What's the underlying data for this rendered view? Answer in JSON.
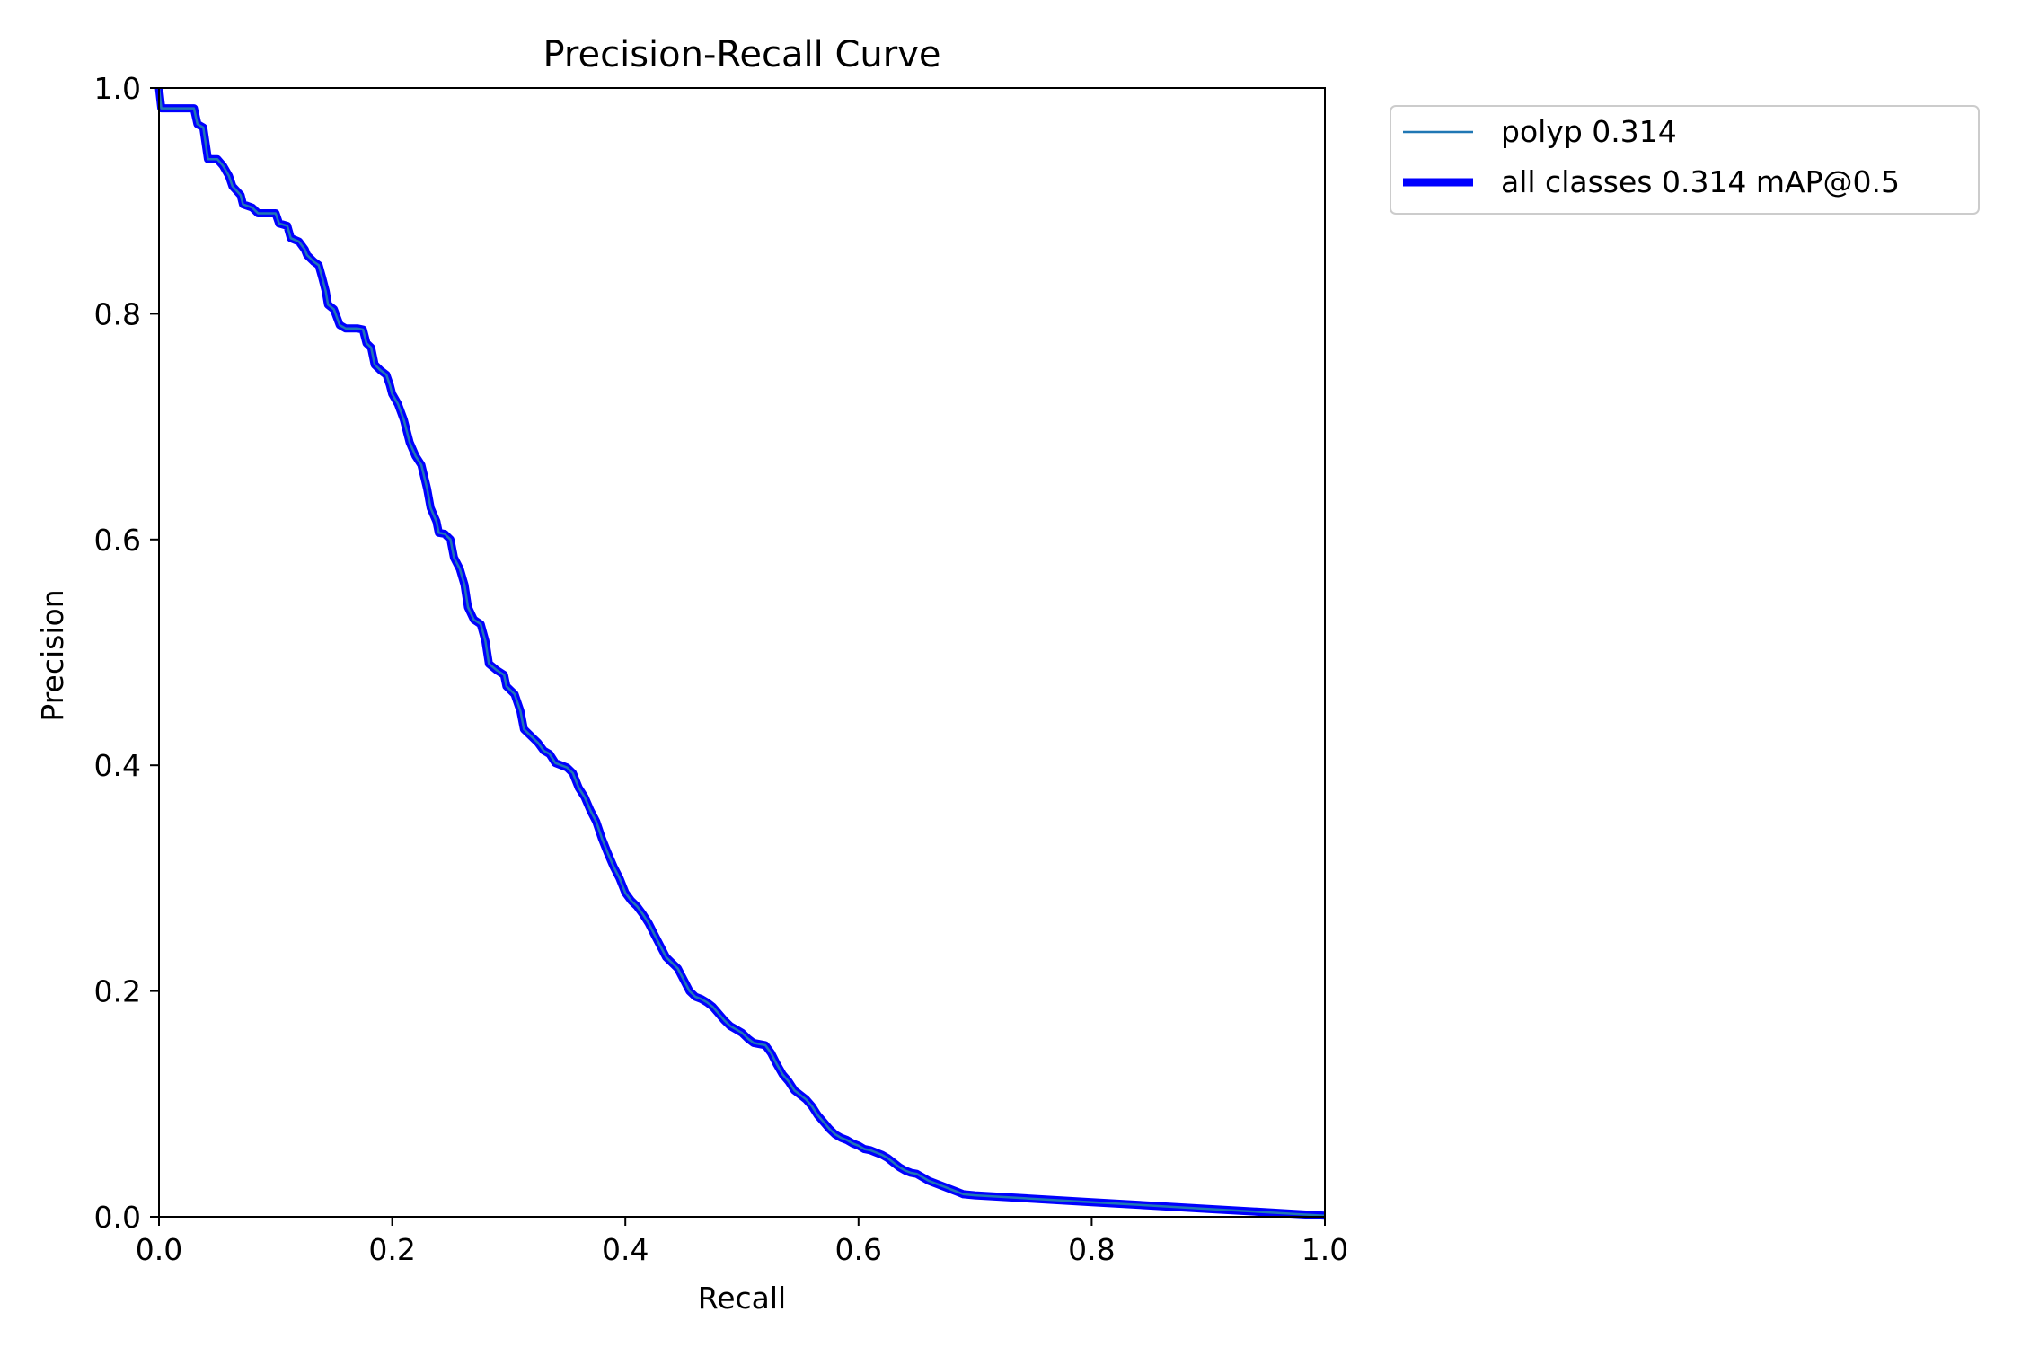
{
  "chart_data": {
    "type": "line",
    "title": "Precision-Recall Curve",
    "xlabel": "Recall",
    "ylabel": "Precision",
    "xlim": [
      0,
      1
    ],
    "ylim": [
      0,
      1
    ],
    "xticks": [
      "0.0",
      "0.2",
      "0.4",
      "0.6",
      "0.8",
      "1.0"
    ],
    "yticks": [
      "0.0",
      "0.2",
      "0.4",
      "0.6",
      "0.8",
      "1.0"
    ],
    "grid": false,
    "legend_position": "outside-top-right",
    "series": [
      {
        "name": "polyp 0.314",
        "color": "#1f77b4",
        "linewidth": "thin",
        "points": [
          [
            0.0,
            1.0
          ],
          [
            0.002,
            0.982
          ],
          [
            0.01,
            0.982
          ],
          [
            0.02,
            0.982
          ],
          [
            0.03,
            0.982
          ],
          [
            0.033,
            0.968
          ],
          [
            0.038,
            0.965
          ],
          [
            0.04,
            0.951
          ],
          [
            0.042,
            0.937
          ],
          [
            0.05,
            0.937
          ],
          [
            0.055,
            0.931
          ],
          [
            0.06,
            0.922
          ],
          [
            0.063,
            0.913
          ],
          [
            0.07,
            0.905
          ],
          [
            0.072,
            0.897
          ],
          [
            0.08,
            0.894
          ],
          [
            0.085,
            0.889
          ],
          [
            0.1,
            0.889
          ],
          [
            0.103,
            0.88
          ],
          [
            0.11,
            0.878
          ],
          [
            0.113,
            0.867
          ],
          [
            0.12,
            0.864
          ],
          [
            0.125,
            0.857
          ],
          [
            0.127,
            0.852
          ],
          [
            0.133,
            0.846
          ],
          [
            0.137,
            0.843
          ],
          [
            0.14,
            0.832
          ],
          [
            0.143,
            0.82
          ],
          [
            0.145,
            0.808
          ],
          [
            0.15,
            0.804
          ],
          [
            0.155,
            0.79
          ],
          [
            0.16,
            0.787
          ],
          [
            0.17,
            0.787
          ],
          [
            0.175,
            0.786
          ],
          [
            0.178,
            0.774
          ],
          [
            0.182,
            0.77
          ],
          [
            0.185,
            0.755
          ],
          [
            0.19,
            0.75
          ],
          [
            0.195,
            0.746
          ],
          [
            0.198,
            0.737
          ],
          [
            0.2,
            0.729
          ],
          [
            0.205,
            0.72
          ],
          [
            0.21,
            0.706
          ],
          [
            0.215,
            0.686
          ],
          [
            0.22,
            0.674
          ],
          [
            0.225,
            0.666
          ],
          [
            0.23,
            0.645
          ],
          [
            0.233,
            0.628
          ],
          [
            0.238,
            0.616
          ],
          [
            0.24,
            0.606
          ],
          [
            0.245,
            0.605
          ],
          [
            0.25,
            0.6
          ],
          [
            0.253,
            0.584
          ],
          [
            0.258,
            0.574
          ],
          [
            0.262,
            0.56
          ],
          [
            0.265,
            0.54
          ],
          [
            0.27,
            0.529
          ],
          [
            0.276,
            0.525
          ],
          [
            0.28,
            0.51
          ],
          [
            0.283,
            0.49
          ],
          [
            0.29,
            0.484
          ],
          [
            0.296,
            0.48
          ],
          [
            0.298,
            0.47
          ],
          [
            0.305,
            0.463
          ],
          [
            0.31,
            0.448
          ],
          [
            0.313,
            0.432
          ],
          [
            0.32,
            0.425
          ],
          [
            0.325,
            0.42
          ],
          [
            0.33,
            0.413
          ],
          [
            0.335,
            0.41
          ],
          [
            0.34,
            0.402
          ],
          [
            0.345,
            0.4
          ],
          [
            0.35,
            0.398
          ],
          [
            0.355,
            0.393
          ],
          [
            0.36,
            0.38
          ],
          [
            0.365,
            0.372
          ],
          [
            0.37,
            0.36
          ],
          [
            0.375,
            0.35
          ],
          [
            0.38,
            0.335
          ],
          [
            0.385,
            0.322
          ],
          [
            0.39,
            0.31
          ],
          [
            0.395,
            0.3
          ],
          [
            0.4,
            0.287
          ],
          [
            0.405,
            0.28
          ],
          [
            0.41,
            0.275
          ],
          [
            0.415,
            0.268
          ],
          [
            0.42,
            0.26
          ],
          [
            0.425,
            0.25
          ],
          [
            0.43,
            0.24
          ],
          [
            0.435,
            0.23
          ],
          [
            0.44,
            0.225
          ],
          [
            0.445,
            0.22
          ],
          [
            0.45,
            0.21
          ],
          [
            0.455,
            0.2
          ],
          [
            0.46,
            0.195
          ],
          [
            0.465,
            0.193
          ],
          [
            0.47,
            0.19
          ],
          [
            0.475,
            0.186
          ],
          [
            0.48,
            0.18
          ],
          [
            0.485,
            0.174
          ],
          [
            0.49,
            0.169
          ],
          [
            0.495,
            0.166
          ],
          [
            0.5,
            0.163
          ],
          [
            0.505,
            0.158
          ],
          [
            0.51,
            0.154
          ],
          [
            0.515,
            0.153
          ],
          [
            0.52,
            0.152
          ],
          [
            0.525,
            0.145
          ],
          [
            0.53,
            0.135
          ],
          [
            0.535,
            0.126
          ],
          [
            0.54,
            0.12
          ],
          [
            0.545,
            0.112
          ],
          [
            0.55,
            0.108
          ],
          [
            0.555,
            0.104
          ],
          [
            0.56,
            0.098
          ],
          [
            0.565,
            0.09
          ],
          [
            0.57,
            0.084
          ],
          [
            0.575,
            0.078
          ],
          [
            0.58,
            0.073
          ],
          [
            0.585,
            0.07
          ],
          [
            0.59,
            0.068
          ],
          [
            0.595,
            0.065
          ],
          [
            0.6,
            0.063
          ],
          [
            0.605,
            0.06
          ],
          [
            0.61,
            0.059
          ],
          [
            0.615,
            0.057
          ],
          [
            0.62,
            0.055
          ],
          [
            0.625,
            0.052
          ],
          [
            0.63,
            0.048
          ],
          [
            0.635,
            0.044
          ],
          [
            0.64,
            0.041
          ],
          [
            0.645,
            0.039
          ],
          [
            0.65,
            0.038
          ],
          [
            0.655,
            0.035
          ],
          [
            0.66,
            0.032
          ],
          [
            0.665,
            0.03
          ],
          [
            0.67,
            0.028
          ],
          [
            0.675,
            0.026
          ],
          [
            0.68,
            0.024
          ],
          [
            0.685,
            0.022
          ],
          [
            0.69,
            0.02
          ],
          [
            0.7,
            0.019
          ],
          [
            0.8,
            0.013
          ],
          [
            0.9,
            0.007
          ],
          [
            1.0,
            0.001
          ]
        ]
      },
      {
        "name": "all classes 0.314 mAP@0.5",
        "color": "#0000ff",
        "linewidth": "thick",
        "same_as": "polyp 0.314"
      }
    ]
  }
}
